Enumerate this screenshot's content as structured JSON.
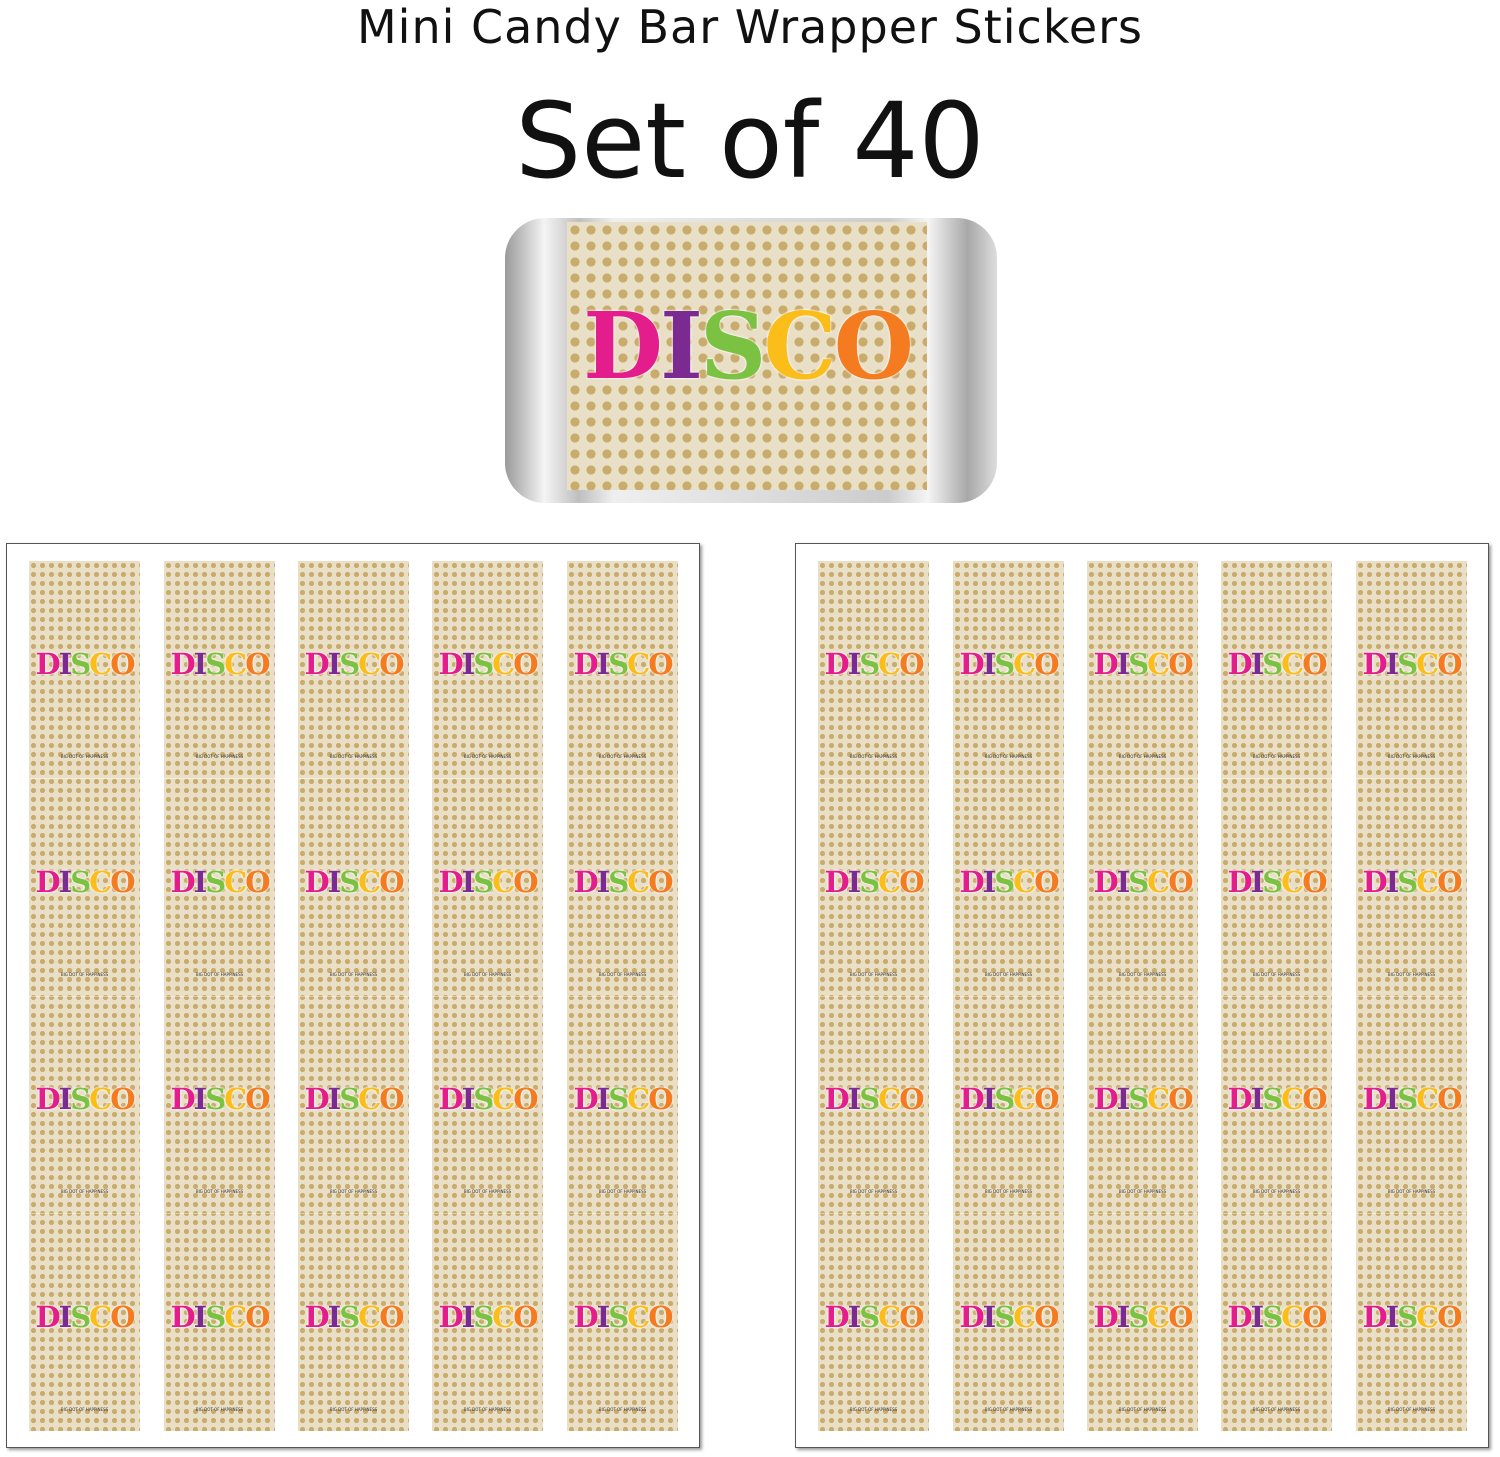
{
  "header": {
    "subtitle": "Mini Candy Bar Wrapper Stickers",
    "title": "Set of 40"
  },
  "sticker": {
    "letters": [
      "D",
      "I",
      "S",
      "C",
      "O"
    ],
    "letter_colors": [
      "#e31d8c",
      "#7b2a92",
      "#7cc242",
      "#fbbd1a",
      "#f47b20"
    ],
    "tagline": "BIG DOT OF HAPPINESS"
  },
  "sheets": {
    "count": 2,
    "columns": 5,
    "rows": 4
  },
  "colors": {
    "background": "#e9dfc7",
    "dots": "#c9ab6b"
  }
}
